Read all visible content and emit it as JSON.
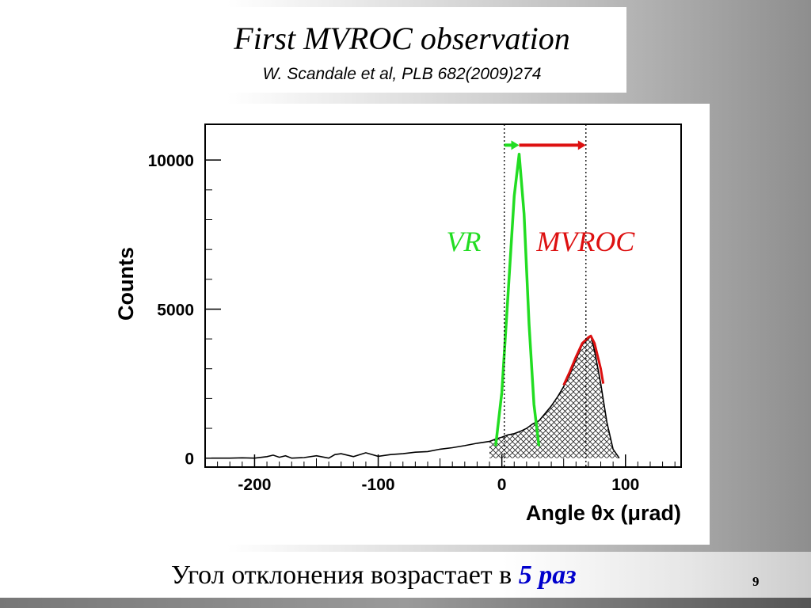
{
  "slide": {
    "title": "First MVROC observation",
    "subtitle": "W. Scandale et al, PLB 682(2009)274",
    "caption_main": "Угол отклонения возрастает в ",
    "caption_emph": "5 раз",
    "page_number": "9"
  },
  "colors": {
    "vr": "#22dd22",
    "mvroc": "#dd1111",
    "caption_emph": "#0000cc"
  },
  "chart_data": {
    "type": "line",
    "title": "",
    "xlabel": "Angle θx (μrad)",
    "ylabel": "Counts",
    "xlim": [
      -240,
      145
    ],
    "ylim": [
      -300,
      11200
    ],
    "xticks": [
      -200,
      -100,
      0,
      100
    ],
    "xtick_labels": [
      "-200",
      "-100",
      "0",
      "100"
    ],
    "yticks": [
      0,
      5000,
      10000
    ],
    "ytick_labels": [
      "0",
      "5000",
      "10000"
    ],
    "grid": false,
    "legend": "none",
    "series": [
      {
        "name": "",
        "style": "black histogram with hatched fill",
        "x": [
          -235,
          -220,
          -210,
          -200,
          -190,
          -185,
          -180,
          -175,
          -170,
          -160,
          -150,
          -140,
          -135,
          -130,
          -120,
          -110,
          -100,
          -90,
          -80,
          -70,
          -60,
          -50,
          -40,
          -30,
          -20,
          -10,
          -5,
          0,
          5,
          10,
          15,
          20,
          25,
          30,
          35,
          40,
          45,
          50,
          55,
          60,
          65,
          70,
          72,
          75,
          80,
          85,
          90,
          95
        ],
        "y": [
          0,
          0,
          10,
          0,
          50,
          100,
          30,
          80,
          0,
          20,
          80,
          0,
          120,
          150,
          50,
          180,
          60,
          120,
          150,
          200,
          220,
          300,
          350,
          420,
          500,
          560,
          640,
          700,
          780,
          820,
          900,
          1000,
          1150,
          1250,
          1500,
          1750,
          2050,
          2400,
          2800,
          3300,
          3800,
          4000,
          4100,
          3600,
          2500,
          1200,
          300,
          0
        ]
      },
      {
        "name": "VR",
        "style": "green line",
        "x": [
          -5,
          0,
          5,
          10,
          14,
          18,
          22,
          26,
          30
        ],
        "y": [
          400,
          2200,
          5500,
          8800,
          10200,
          8200,
          4500,
          1800,
          400
        ]
      },
      {
        "name": "MVROC",
        "style": "red line",
        "x": [
          50,
          55,
          60,
          65,
          70,
          72,
          75,
          80,
          82
        ],
        "y": [
          2450,
          2900,
          3400,
          3850,
          4050,
          4100,
          3850,
          3000,
          2500
        ]
      }
    ],
    "annotations": [
      {
        "text": "VR",
        "color": "#22dd22"
      },
      {
        "text": "MVROC",
        "color": "#dd1111"
      }
    ],
    "markers": {
      "vlines_x": [
        2,
        68
      ],
      "green_arrow": {
        "from_x": 2,
        "to_x": 14,
        "y": 10500
      },
      "red_arrow": {
        "from_x": 14,
        "to_x": 68,
        "y": 10500
      }
    }
  }
}
